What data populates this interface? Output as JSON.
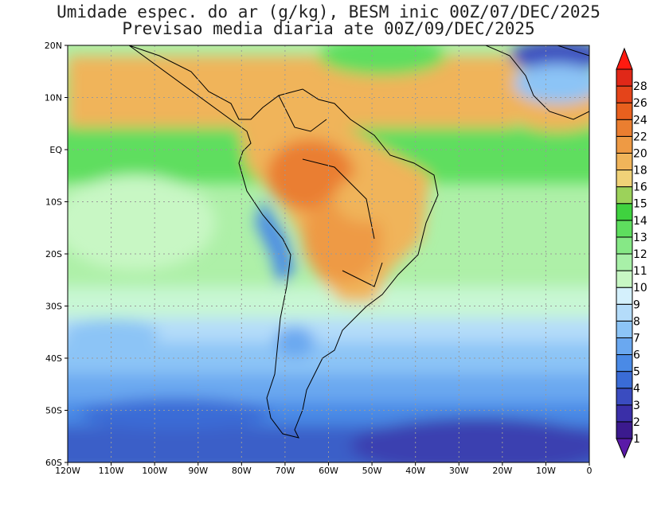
{
  "title": {
    "line1": "Umidade espec. do ar (g/kg), BESM inic 00Z/07/DEC/2025",
    "line2": "Previsao media diaria ate 00Z/09/DEC/2025"
  },
  "map": {
    "lon_range": [
      -120,
      0
    ],
    "lat_range": [
      -60,
      20
    ],
    "lat_labels": [
      "20N",
      "10N",
      "EQ",
      "10S",
      "20S",
      "30S",
      "40S",
      "50S",
      "60S"
    ],
    "lon_labels": [
      "120W",
      "110W",
      "100W",
      "90W",
      "80W",
      "70W",
      "60W",
      "50W",
      "40W",
      "30W",
      "20W",
      "10W",
      "0"
    ],
    "grid": "dotted"
  },
  "colorbar": {
    "levels": [
      "1",
      "2",
      "3",
      "4",
      "5",
      "6",
      "7",
      "8",
      "9",
      "10",
      "11",
      "12",
      "13",
      "14",
      "15",
      "16",
      "18",
      "20",
      "22",
      "24",
      "26",
      "28"
    ],
    "colors": [
      "#3b1a8e",
      "#3a2fa8",
      "#3a4cc0",
      "#3a6cd6",
      "#4a8ae6",
      "#6aa8f0",
      "#8cc4f6",
      "#b4dcfa",
      "#d4f0fc",
      "#c8f7c4",
      "#a8f0a8",
      "#86e886",
      "#5ede5e",
      "#3fd23f",
      "#9cd25a",
      "#f0d278",
      "#f0b45a",
      "#ee9a44",
      "#ea7e30",
      "#e8601e",
      "#e4441a",
      "#e02818"
    ]
  },
  "legend_colors": {
    "under": "#5a1aa8",
    "over": "#ff1a10"
  }
}
